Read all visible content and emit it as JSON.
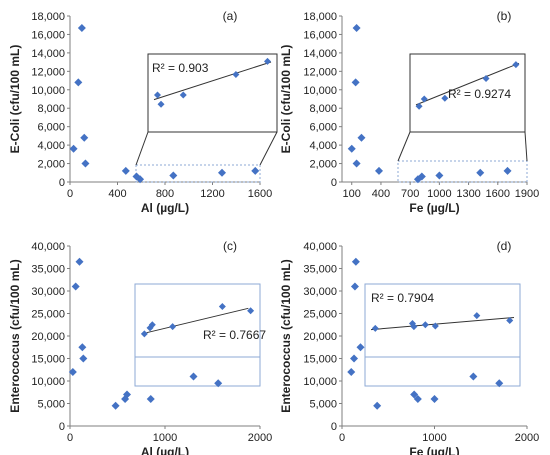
{
  "colors": {
    "marker": "#4472C4",
    "axis": "#7f7f7f",
    "box": "#333333",
    "zoom": "#8eaad6",
    "trend": "#333333"
  },
  "chart_data": [
    {
      "type": "scatter",
      "panel_label": "(a)",
      "xlabel": "Al (µg/L)",
      "ylabel": "E-Coli (cfu/100 mL)",
      "xlim": [
        0,
        1600
      ],
      "ylim": [
        0,
        18000
      ],
      "x_ticks": [
        "0",
        "400",
        "800",
        "1200",
        "1600"
      ],
      "y_ticks": [
        "0",
        "2,000",
        "4,000",
        "6,000",
        "8,000",
        "10,000",
        "12,000",
        "14,000",
        "16,000",
        "18,000"
      ],
      "points": [
        {
          "x": 30,
          "y": 3600
        },
        {
          "x": 70,
          "y": 10800
        },
        {
          "x": 100,
          "y": 16700
        },
        {
          "x": 120,
          "y": 4800
        },
        {
          "x": 130,
          "y": 2000
        },
        {
          "x": 470,
          "y": 1200
        },
        {
          "x": 560,
          "y": 600
        },
        {
          "x": 590,
          "y": 300
        },
        {
          "x": 870,
          "y": 700
        },
        {
          "x": 1280,
          "y": 1000
        },
        {
          "x": 1560,
          "y": 1200
        }
      ],
      "inset": {
        "r2": "R² = 0.903",
        "points": [
          {
            "x": 0.03,
            "y": 0.47
          },
          {
            "x": 0.06,
            "y": 0.33
          },
          {
            "x": 0.25,
            "y": 0.47
          },
          {
            "x": 0.7,
            "y": 0.78
          },
          {
            "x": 0.97,
            "y": 0.98
          }
        ],
        "trend": [
          [
            0.0,
            0.4
          ],
          [
            1.0,
            0.97
          ]
        ]
      }
    },
    {
      "type": "scatter",
      "panel_label": "(b)",
      "xlabel": "Fe (µg/L)",
      "ylabel": "E-Coli (cfu/100 mL)",
      "xlim": [
        0,
        1900
      ],
      "ylim": [
        0,
        18000
      ],
      "x_ticks": [
        "100",
        "400",
        "700",
        "1000",
        "1300",
        "1600",
        "1900"
      ],
      "x_tick_values": [
        100,
        400,
        700,
        1000,
        1300,
        1600,
        1900
      ],
      "y_ticks": [
        "0",
        "2,000",
        "4,000",
        "6,000",
        "8,000",
        "10,000",
        "12,000",
        "14,000",
        "16,000",
        "18,000"
      ],
      "points": [
        {
          "x": 100,
          "y": 3600
        },
        {
          "x": 140,
          "y": 10800
        },
        {
          "x": 150,
          "y": 16700
        },
        {
          "x": 150,
          "y": 2000
        },
        {
          "x": 200,
          "y": 4800
        },
        {
          "x": 380,
          "y": 1200
        },
        {
          "x": 780,
          "y": 300
        },
        {
          "x": 820,
          "y": 600
        },
        {
          "x": 1000,
          "y": 700
        },
        {
          "x": 1420,
          "y": 1000
        },
        {
          "x": 1700,
          "y": 1200
        }
      ],
      "inset": {
        "r2": "R² = 0.9274",
        "points": [
          {
            "x": 0.03,
            "y": 0.3
          },
          {
            "x": 0.08,
            "y": 0.41
          },
          {
            "x": 0.28,
            "y": 0.42
          },
          {
            "x": 0.68,
            "y": 0.72
          },
          {
            "x": 0.97,
            "y": 0.93
          }
        ],
        "trend": [
          [
            0.0,
            0.32
          ],
          [
            1.0,
            0.95
          ]
        ]
      }
    },
    {
      "type": "scatter",
      "panel_label": "(c)",
      "xlabel": "Al (µg/L)",
      "ylabel": "Enterococcus (cfu/100 mL)",
      "xlim": [
        0,
        2000
      ],
      "ylim": [
        0,
        40000
      ],
      "x_ticks": [
        "0",
        "1000",
        "2000"
      ],
      "y_ticks": [
        "0",
        "5,000",
        "10,000",
        "15,000",
        "20,000",
        "25,000",
        "30,000",
        "35,000",
        "40,000"
      ],
      "points": [
        {
          "x": 30,
          "y": 12000
        },
        {
          "x": 60,
          "y": 31000
        },
        {
          "x": 100,
          "y": 36500
        },
        {
          "x": 130,
          "y": 17500
        },
        {
          "x": 140,
          "y": 15000
        },
        {
          "x": 480,
          "y": 4500
        },
        {
          "x": 580,
          "y": 6000
        },
        {
          "x": 600,
          "y": 7000
        },
        {
          "x": 850,
          "y": 6000
        },
        {
          "x": 1300,
          "y": 11000
        },
        {
          "x": 1560,
          "y": 9500
        }
      ],
      "inset": {
        "r2": "R² = 0.7667",
        "points": [
          {
            "x": 0.03,
            "y": 0.28
          },
          {
            "x": 0.08,
            "y": 0.38
          },
          {
            "x": 0.1,
            "y": 0.43
          },
          {
            "x": 0.28,
            "y": 0.4
          },
          {
            "x": 0.72,
            "y": 0.73
          },
          {
            "x": 0.97,
            "y": 0.66
          }
        ],
        "trend": [
          [
            0.05,
            0.3
          ],
          [
            0.95,
            0.7
          ]
        ]
      }
    },
    {
      "type": "scatter",
      "panel_label": "(d)",
      "xlabel": "Fe (µg/L)",
      "ylabel": "Enterococcus (cfu/100 mL)",
      "xlim": [
        0,
        2000
      ],
      "ylim": [
        0,
        40000
      ],
      "x_ticks": [
        "0",
        "1000",
        "2000"
      ],
      "y_ticks": [
        "0",
        "5,000",
        "10,000",
        "15,000",
        "20,000",
        "25,000",
        "30,000",
        "35,000",
        "40,000"
      ],
      "points": [
        {
          "x": 100,
          "y": 12000
        },
        {
          "x": 130,
          "y": 15000
        },
        {
          "x": 140,
          "y": 31000
        },
        {
          "x": 150,
          "y": 36500
        },
        {
          "x": 200,
          "y": 17500
        },
        {
          "x": 380,
          "y": 4500
        },
        {
          "x": 780,
          "y": 7000
        },
        {
          "x": 820,
          "y": 6000
        },
        {
          "x": 1000,
          "y": 6000
        },
        {
          "x": 1420,
          "y": 11000
        },
        {
          "x": 1700,
          "y": 9500
        }
      ],
      "inset": {
        "r2": "R² = 0.7904",
        "points": [
          {
            "x": 0.03,
            "y": 0.37
          },
          {
            "x": 0.29,
            "y": 0.45
          },
          {
            "x": 0.38,
            "y": 0.43
          },
          {
            "x": 0.3,
            "y": 0.4
          },
          {
            "x": 0.45,
            "y": 0.41
          },
          {
            "x": 0.74,
            "y": 0.58
          },
          {
            "x": 0.97,
            "y": 0.5
          }
        ],
        "trend": [
          [
            0.0,
            0.35
          ],
          [
            1.0,
            0.55
          ]
        ]
      }
    }
  ]
}
